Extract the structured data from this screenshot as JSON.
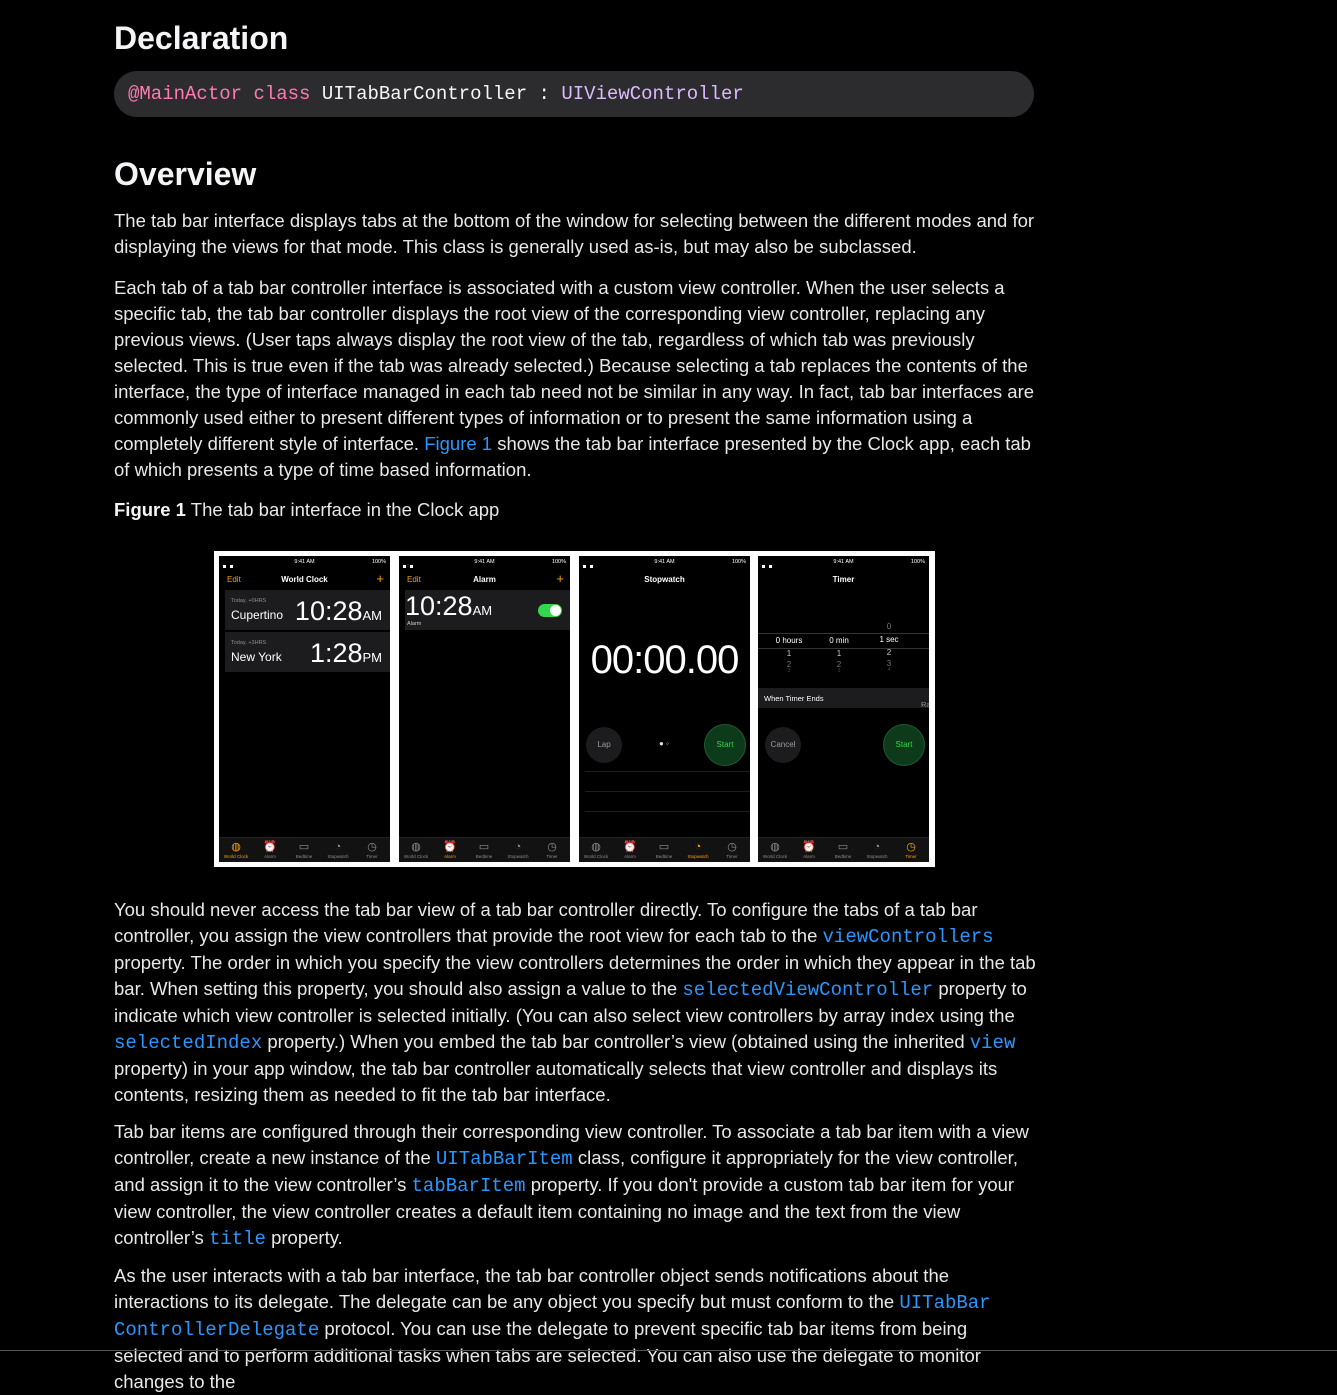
{
  "declaration": {
    "title": "Declaration",
    "code_attr": "@MainActor",
    "code_keyword": "class",
    "code_name": "UITabBarController",
    "code_sep": ":",
    "code_super": "UIViewController"
  },
  "overview": {
    "title": "Overview",
    "p1": "The tab bar interface displays tabs at the bottom of the window for selecting between the different modes and for displaying the views for that mode. This class is generally used as-is, but may also be subclassed.",
    "p2_a": "Each tab of a tab bar controller interface is associated with a custom view controller. When the user selects a specific tab, the tab bar controller displays the root view of the corresponding view controller, replacing any previous views. (User taps always display the root view of the tab, regardless of which tab was previously selected. This is true even if the tab was already selected.) Because selecting a tab replaces the contents of the interface, the type of interface managed in each tab need not be similar in any way. In fact, tab bar interfaces are commonly used either to present different types of information or to present the same information using a completely different style of interface.",
    "p2_link": "Figure 1",
    "p2_b": "shows the tab bar interface presented by the Clock app, each tab of which presents a type of time based information.",
    "figure_label": "Figure 1",
    "figure_caption": "The tab bar interface in the Clock app",
    "p3_a": "You should never access the tab bar view of a tab bar controller directly. To configure the tabs of a tab bar controller, you assign the view controllers that provide the root view for each tab to the",
    "p3_l1": "viewControllers",
    "p3_b": "property. The order in which you specify the view controllers determines the order in which they appear in the tab bar. When setting this property, you should also assign a value to the",
    "p3_l2": "selectedViewController",
    "p3_c": "property to indicate which view controller is selected initially. (You can also select view controllers by array index using the",
    "p3_l3": "selectedIndex",
    "p3_d": "property.) When you embed the tab bar controller’s view (obtained using the inherited",
    "p3_l4": "view",
    "p3_e": "property) in your app window, the tab bar controller automatically selects that view controller and displays its contents, resizing them as needed to fit the tab bar interface.",
    "p4_a": "Tab bar items are configured through their corresponding view controller. To associate a tab bar item with a view controller, create a new instance of the",
    "p4_l1": "UITabBarItem",
    "p4_b": "class, configure it appropriately for the view controller, and assign it to the view controller’s",
    "p4_l2": "tabBarItem",
    "p4_c": "property. If you don't provide a custom tab bar item for your view controller, the view controller creates a default item containing no image and the text from the view controller’s",
    "p4_l3": "title",
    "p4_d": "property.",
    "p5_a": "As the user interacts with a tab bar interface, the tab bar controller object sends notifications about the interactions to its delegate. The delegate can be any object you specify but must conform to the",
    "p5_l1a": "UITabBar",
    "p5_l1b": "ControllerDelegate",
    "p5_b": "protocol. You can use the delegate to prevent specific tab bar items from being selected and to perform additional tasks when tabs are selected. You can also use the delegate to monitor changes to the"
  },
  "figure": {
    "status_time": "9:41 AM",
    "battery": "100%",
    "tabs": [
      "World Clock",
      "Alarm",
      "Bedtime",
      "Stopwatch",
      "Timer"
    ],
    "world_clock": {
      "title": "World Clock",
      "edit": "Edit",
      "plus": "+",
      "rows": [
        {
          "sub": "Today, +0HRS",
          "city": "Cupertino",
          "time": "10:28",
          "ampm": "AM"
        },
        {
          "sub": "Today, +3HRS",
          "city": "New York",
          "time": "1:28",
          "ampm": "PM"
        }
      ]
    },
    "alarm": {
      "title": "Alarm",
      "edit": "Edit",
      "plus": "+",
      "time": "10:28",
      "ampm": "AM",
      "label": "Alarm"
    },
    "stopwatch": {
      "title": "Stopwatch",
      "time": "00:00.00",
      "lap": "Lap",
      "start": "Start"
    },
    "timer": {
      "title": "Timer",
      "col1": [
        "0 hours",
        "1",
        "2",
        "3"
      ],
      "col2": [
        "0 min",
        "1",
        "2",
        "3"
      ],
      "col3_above": "0",
      "col3": [
        "1 sec",
        "2",
        "3",
        "4"
      ],
      "when_ends": "When Timer Ends",
      "sound": "Radar",
      "cancel": "Cancel",
      "start": "Start"
    }
  }
}
